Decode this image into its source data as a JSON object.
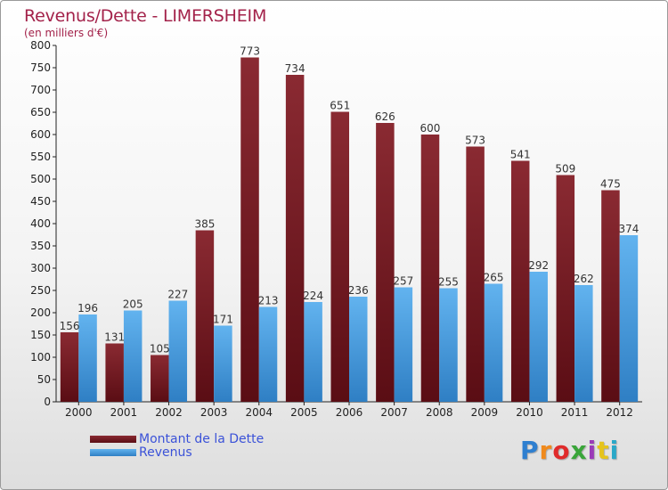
{
  "title": "Revenus/Dette - LIMERSHEIM",
  "subtitle": "(en milliers d'€)",
  "logo": "Proxiti",
  "colors": {
    "title": "#a3224a",
    "debt_light": "#8a2a32",
    "debt_dark": "#5a0d14",
    "revenue_light": "#62b3ef",
    "revenue_dark": "#2f7fc4",
    "legend_text": "#3b52d8"
  },
  "chart_data": {
    "type": "bar",
    "title": "Revenus/Dette - LIMERSHEIM",
    "subtitle": "(en milliers d'€)",
    "categories": [
      "2000",
      "2001",
      "2002",
      "2003",
      "2004",
      "2005",
      "2006",
      "2007",
      "2008",
      "2009",
      "2010",
      "2011",
      "2012"
    ],
    "series": [
      {
        "name": "Montant de la Dette",
        "values": [
          156,
          131,
          105,
          385,
          773,
          734,
          651,
          626,
          600,
          573,
          541,
          509,
          475
        ]
      },
      {
        "name": "Revenus",
        "values": [
          196,
          205,
          227,
          171,
          213,
          224,
          236,
          257,
          255,
          265,
          292,
          262,
          374
        ]
      }
    ],
    "ylim": [
      0,
      800
    ],
    "yticks": [
      0,
      50,
      100,
      150,
      200,
      250,
      300,
      350,
      400,
      450,
      500,
      550,
      600,
      650,
      700,
      750,
      800
    ],
    "grid": false,
    "legend": "bottom-left"
  }
}
